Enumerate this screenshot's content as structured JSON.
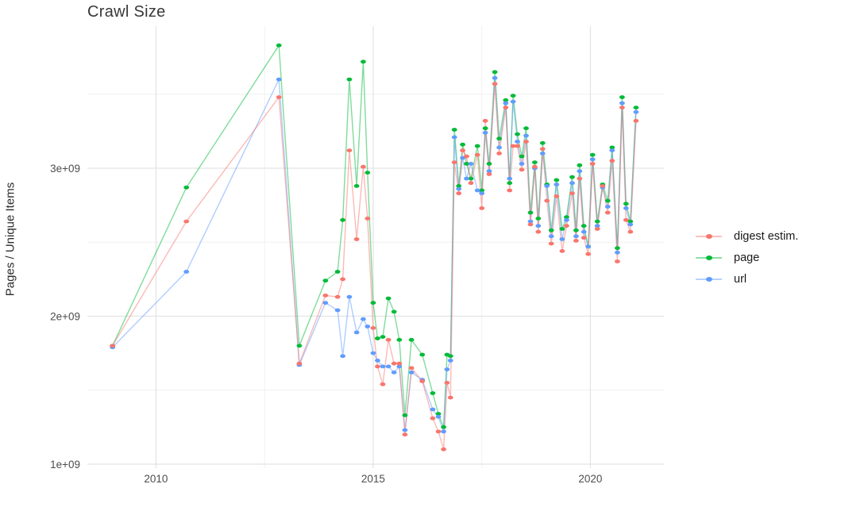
{
  "chart": {
    "title": "Crawl Size",
    "ylabel": "Pages / Unique Items"
  },
  "chart_data": {
    "type": "line",
    "title": "Crawl Size",
    "xlabel": "",
    "ylabel": "Pages / Unique Items",
    "legend_position": "right",
    "grid": true,
    "xlim": [
      2008.42,
      2021.82
    ],
    "ylim_e9": [
      0.973,
      3.96
    ],
    "x_major_ticks": [
      {
        "v": 2010,
        "label": "2010"
      },
      {
        "v": 2015,
        "label": "2015"
      },
      {
        "v": 2020,
        "label": "2020"
      }
    ],
    "x_minor_ticks": [
      2012.5,
      2017.5
    ],
    "y_major_ticks": [
      {
        "v": 1,
        "label": "1e+09"
      },
      {
        "v": 2,
        "label": "2e+09"
      },
      {
        "v": 3,
        "label": "3e+09"
      }
    ],
    "y_minor_ticks": [
      1.5,
      2.5,
      3.5
    ],
    "x": [
      2009.0,
      2010.7,
      2012.83,
      2013.3,
      2013.9,
      2014.18,
      2014.3,
      2014.45,
      2014.62,
      2014.77,
      2014.87,
      2015.0,
      2015.1,
      2015.22,
      2015.35,
      2015.48,
      2015.6,
      2015.73,
      2015.88,
      2016.13,
      2016.37,
      2016.5,
      2016.62,
      2016.7,
      2016.78,
      2016.87,
      2016.97,
      2017.06,
      2017.15,
      2017.25,
      2017.4,
      2017.5,
      2017.58,
      2017.67,
      2017.8,
      2017.9,
      2018.05,
      2018.14,
      2018.22,
      2018.32,
      2018.42,
      2018.52,
      2018.62,
      2018.72,
      2018.8,
      2018.9,
      2019.0,
      2019.1,
      2019.22,
      2019.35,
      2019.45,
      2019.58,
      2019.67,
      2019.75,
      2019.85,
      2019.95,
      2020.05,
      2020.16,
      2020.28,
      2020.4,
      2020.5,
      2020.62,
      2020.73,
      2020.82,
      2020.92,
      2021.05
    ],
    "units": "pages (1e9)",
    "series": [
      {
        "name": "digest estim.",
        "color": "#F8766D",
        "values_e9": [
          1.8,
          2.64,
          3.48,
          1.68,
          2.14,
          2.13,
          2.25,
          3.12,
          2.52,
          3.01,
          2.66,
          1.92,
          1.66,
          1.54,
          1.84,
          1.68,
          1.68,
          1.2,
          1.65,
          1.56,
          1.31,
          1.22,
          1.1,
          1.55,
          1.45,
          3.04,
          2.83,
          3.12,
          3.08,
          2.9,
          3.09,
          2.73,
          3.32,
          2.96,
          3.57,
          3.1,
          3.41,
          2.85,
          3.15,
          3.15,
          2.99,
          3.18,
          2.62,
          3.01,
          2.57,
          3.13,
          2.78,
          2.49,
          2.81,
          2.44,
          2.61,
          2.83,
          2.51,
          2.93,
          2.53,
          2.42,
          3.03,
          2.59,
          2.88,
          2.7,
          3.05,
          2.37,
          3.41,
          2.65,
          2.57,
          3.32
        ]
      },
      {
        "name": "page",
        "color": "#00BA38",
        "values_e9": [
          1.8,
          2.87,
          3.83,
          1.8,
          2.24,
          2.3,
          2.65,
          3.6,
          2.88,
          3.72,
          2.97,
          2.09,
          1.85,
          1.86,
          2.12,
          2.03,
          1.84,
          1.33,
          1.84,
          1.74,
          1.48,
          1.34,
          1.25,
          1.74,
          1.73,
          3.26,
          2.88,
          3.16,
          3.03,
          2.93,
          3.15,
          2.85,
          3.27,
          3.03,
          3.65,
          3.2,
          3.46,
          2.9,
          3.49,
          3.23,
          3.08,
          3.27,
          2.7,
          3.04,
          2.66,
          3.17,
          2.89,
          2.58,
          2.92,
          2.59,
          2.67,
          2.94,
          2.58,
          3.02,
          2.61,
          2.47,
          3.09,
          2.64,
          2.89,
          2.78,
          3.14,
          2.46,
          3.48,
          2.76,
          2.64,
          3.41
        ]
      },
      {
        "name": "url",
        "color": "#619CFF",
        "values_e9": [
          1.79,
          2.3,
          3.6,
          1.67,
          2.09,
          2.04,
          1.73,
          2.13,
          1.89,
          1.98,
          1.93,
          1.75,
          1.7,
          1.66,
          1.66,
          1.62,
          1.66,
          1.23,
          1.62,
          1.57,
          1.37,
          1.32,
          1.22,
          1.64,
          1.7,
          3.21,
          2.86,
          3.07,
          2.93,
          3.03,
          2.85,
          2.83,
          3.24,
          2.98,
          3.61,
          3.14,
          3.44,
          2.93,
          3.45,
          3.18,
          3.03,
          3.22,
          2.64,
          3.0,
          2.61,
          3.1,
          2.88,
          2.54,
          2.89,
          2.52,
          2.65,
          2.9,
          2.54,
          2.98,
          2.57,
          2.47,
          3.06,
          2.61,
          2.87,
          2.74,
          3.12,
          2.43,
          3.44,
          2.73,
          2.62,
          3.38
        ]
      }
    ],
    "draw_order": [
      "page",
      "url",
      "digest estim."
    ],
    "colors": {
      "grid_major": "#e3e3e3",
      "grid_minor": "#f0f0f0",
      "tick_text": "#4d4d4d",
      "title_text": "#383838"
    }
  }
}
